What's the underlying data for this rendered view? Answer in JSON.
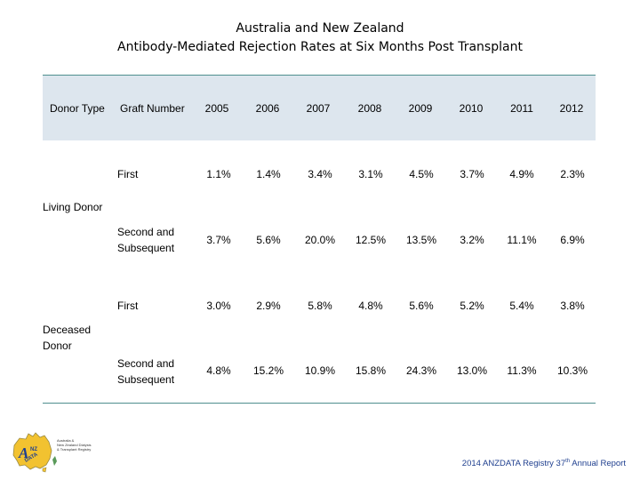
{
  "title": {
    "line1": "Australia and New Zealand",
    "line2": "Antibody-Mediated Rejection Rates at Six Months Post Transplant"
  },
  "table": {
    "headers": {
      "donor_type": "Donor Type",
      "graft_number": "Graft Number",
      "years": [
        "2005",
        "2006",
        "2007",
        "2008",
        "2009",
        "2010",
        "2011",
        "2012"
      ]
    },
    "groups": [
      {
        "donor": "Living  Donor",
        "rows": [
          {
            "graft": "First",
            "values": [
              "1.1%",
              "1.4%",
              "3.4%",
              "3.1%",
              "4.5%",
              "3.7%",
              "4.9%",
              "2.3%"
            ]
          },
          {
            "graft_line1": "Second and",
            "graft_line2": "Subsequent",
            "values": [
              "3.7%",
              "5.6%",
              "20.0%",
              "12.5%",
              "13.5%",
              "3.2%",
              "11.1%",
              "6.9%"
            ]
          }
        ]
      },
      {
        "donor_line1": "Deceased",
        "donor_line2": "Donor",
        "rows": [
          {
            "graft": "First",
            "values": [
              "3.0%",
              "2.9%",
              "5.8%",
              "4.8%",
              "5.6%",
              "5.2%",
              "5.4%",
              "3.8%"
            ]
          },
          {
            "graft_line1": "Second and",
            "graft_line2": "Subsequent",
            "values": [
              "4.8%",
              "15.2%",
              "10.9%",
              "15.8%",
              "24.3%",
              "13.0%",
              "11.3%",
              "10.3%"
            ]
          }
        ]
      }
    ]
  },
  "logo": {
    "letters": "ANZ DATA",
    "text_line1": "Australia &",
    "text_line2": "New Zealand Dialysis",
    "text_line3": "& Transplant Registry"
  },
  "footer": {
    "prefix": "2014 ANZDATA Registry 37",
    "sup": "th",
    "suffix": " Annual Report"
  },
  "colors": {
    "header_bg": "#dde6ee",
    "rule": "#4f8f8f",
    "footer_text": "#1f3f8f",
    "logo_map": "#f2c230"
  }
}
